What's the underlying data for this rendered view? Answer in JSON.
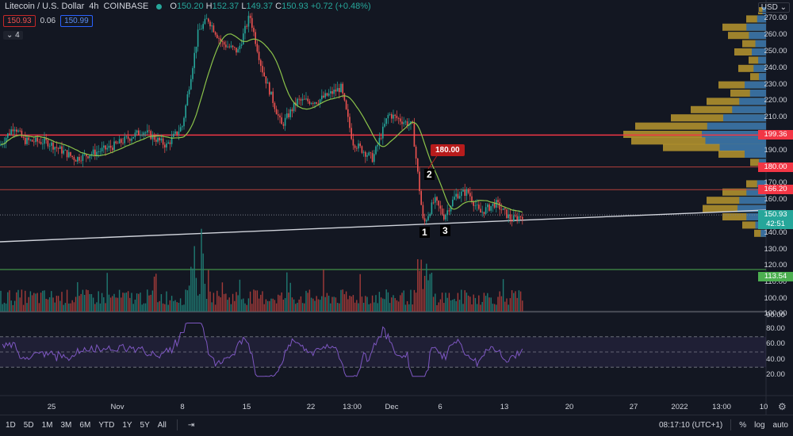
{
  "header": {
    "symbol_title": "Litecoin / U.S. Dollar",
    "interval": "4h",
    "exchange": "COINBASE",
    "ohlc": {
      "o_label": "O",
      "o": "150.20",
      "h_label": "H",
      "h": "152.37",
      "l_label": "L",
      "l": "149.37",
      "c_label": "C",
      "c": "150.93",
      "change": "+0.72",
      "change_pct": "(+0.48%)"
    },
    "sell_price": "150.93",
    "spread": "0.06",
    "buy_price": "150.99",
    "indicators_collapsed": "⌄ 4"
  },
  "price_axis": {
    "currency": "USD ⌄",
    "ticks": [
      "270.00",
      "260.00",
      "250.00",
      "240.00",
      "230.00",
      "220.00",
      "210.00",
      "190.00",
      "170.00",
      "160.00",
      "140.00",
      "130.00",
      "120.00",
      "110.00",
      "100.00",
      "90.00"
    ],
    "tags": [
      {
        "label": "199.36",
        "color": "#f23645"
      },
      {
        "label": "180.00",
        "color": "#f23645"
      },
      {
        "label": "166.20",
        "color": "#f23645"
      },
      {
        "label": "150.93",
        "color": "#26a69a"
      },
      {
        "label": "42:51",
        "color": "#26a69a"
      },
      {
        "label": "113.54",
        "color": "#4caf50"
      }
    ]
  },
  "rsi_axis": {
    "ticks": [
      "100.00",
      "80.00",
      "60.00",
      "40.00",
      "20.00"
    ]
  },
  "time_axis": {
    "labels": [
      "25",
      "Nov",
      "8",
      "15",
      "22",
      "13:00",
      "Dec",
      "6",
      "13",
      "20",
      "27",
      "2022",
      "13:00",
      "10"
    ]
  },
  "annotations": {
    "callout": "180.00",
    "points": [
      "1",
      "2",
      "3"
    ]
  },
  "bottom_bar": {
    "ranges": [
      "1D",
      "5D",
      "1M",
      "3M",
      "6M",
      "YTD",
      "1Y",
      "5Y",
      "All"
    ],
    "clock": "08:17:10 (UTC+1)",
    "percent": "%",
    "log": "log",
    "auto": "auto"
  },
  "colors": {
    "up": "#26a69a",
    "down": "#ef5350",
    "ma": "#8bc34a",
    "rsi": "#7e57c2",
    "support": "#d1d4dc",
    "resistance": "#f23645",
    "background": "#131722"
  },
  "chart_data": {
    "type": "candlestick",
    "title": "Litecoin / U.S. Dollar · 4h · COINBASE",
    "xlabel": "",
    "ylabel": "USD",
    "ylim": [
      88,
      278
    ],
    "x": [
      "Oct 25",
      "Nov 1",
      "Nov 8",
      "Nov 15",
      "Nov 22",
      "Dec 1",
      "Dec 6",
      "Dec 13"
    ],
    "close_approx": [
      197,
      200,
      265,
      258,
      218,
      205,
      150,
      151
    ],
    "horizontal_levels": [
      199.36,
      180.0,
      166.2,
      113.54
    ],
    "trendline": {
      "from": [
        "Oct 20",
        132
      ],
      "to": [
        "Jan 10",
        152
      ]
    },
    "last_price": 150.93,
    "rsi": {
      "ylim": [
        0,
        100
      ],
      "bands": [
        30,
        50,
        70
      ],
      "last": 49
    },
    "legend": [
      "Price",
      "MA",
      "Volume",
      "RSI",
      "Volume Profile"
    ]
  }
}
